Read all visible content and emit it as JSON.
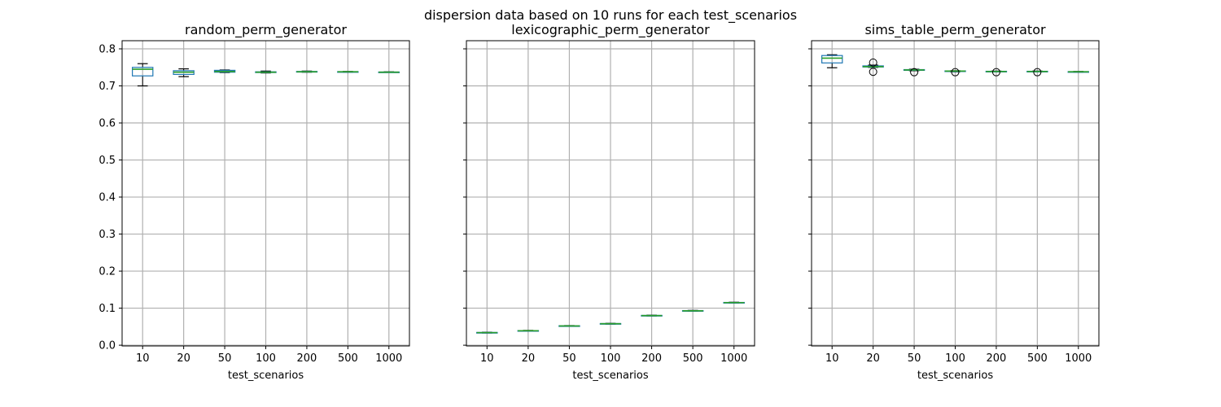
{
  "figure": {
    "suptitle": "dispersion data based on 10 runs for each test_scenarios"
  },
  "chart_data": [
    {
      "type": "box",
      "title": "random_perm_generator",
      "xlabel": "test_scenarios",
      "ylabel": "",
      "categories": [
        "10",
        "20",
        "50",
        "100",
        "200",
        "500",
        "1000"
      ],
      "ylim": [
        -0.002,
        0.822
      ],
      "yticks": [
        "0.0",
        "0.1",
        "0.2",
        "0.3",
        "0.4",
        "0.5",
        "0.6",
        "0.7",
        "0.8"
      ],
      "grid": true,
      "boxes": [
        {
          "whislo": 0.7,
          "q1": 0.727,
          "med": 0.745,
          "q3": 0.75,
          "whishi": 0.76,
          "fliers": []
        },
        {
          "whislo": 0.725,
          "q1": 0.731,
          "med": 0.737,
          "q3": 0.741,
          "whishi": 0.746,
          "fliers": []
        },
        {
          "whislo": 0.736,
          "q1": 0.737,
          "med": 0.739,
          "q3": 0.742,
          "whishi": 0.743,
          "fliers": []
        },
        {
          "whislo": 0.735,
          "q1": 0.736,
          "med": 0.737,
          "q3": 0.738,
          "whishi": 0.74,
          "fliers": []
        },
        {
          "whislo": 0.737,
          "q1": 0.7375,
          "med": 0.738,
          "q3": 0.739,
          "whishi": 0.74,
          "fliers": []
        },
        {
          "whislo": 0.737,
          "q1": 0.7375,
          "med": 0.738,
          "q3": 0.7385,
          "whishi": 0.739,
          "fliers": []
        },
        {
          "whislo": 0.7365,
          "q1": 0.737,
          "med": 0.737,
          "q3": 0.7375,
          "whishi": 0.738,
          "fliers": []
        }
      ]
    },
    {
      "type": "box",
      "title": "lexicographic_perm_generator",
      "xlabel": "test_scenarios",
      "ylabel": "",
      "categories": [
        "10",
        "20",
        "50",
        "100",
        "200",
        "500",
        "1000"
      ],
      "ylim": [
        -0.002,
        0.822
      ],
      "yticks": [],
      "grid": true,
      "boxes": [
        {
          "whislo": 0.033,
          "q1": 0.0335,
          "med": 0.034,
          "q3": 0.0345,
          "whishi": 0.035,
          "fliers": []
        },
        {
          "whislo": 0.038,
          "q1": 0.0385,
          "med": 0.039,
          "q3": 0.0395,
          "whishi": 0.04,
          "fliers": []
        },
        {
          "whislo": 0.051,
          "q1": 0.0515,
          "med": 0.052,
          "q3": 0.0525,
          "whishi": 0.053,
          "fliers": []
        },
        {
          "whislo": 0.057,
          "q1": 0.0575,
          "med": 0.058,
          "q3": 0.0585,
          "whishi": 0.059,
          "fliers": []
        },
        {
          "whislo": 0.079,
          "q1": 0.0795,
          "med": 0.08,
          "q3": 0.0805,
          "whishi": 0.081,
          "fliers": []
        },
        {
          "whislo": 0.092,
          "q1": 0.0925,
          "med": 0.093,
          "q3": 0.0935,
          "whishi": 0.094,
          "fliers": []
        },
        {
          "whislo": 0.114,
          "q1": 0.1145,
          "med": 0.115,
          "q3": 0.1155,
          "whishi": 0.116,
          "fliers": []
        }
      ]
    },
    {
      "type": "box",
      "title": "sims_table_perm_generator",
      "xlabel": "test_scenarios",
      "ylabel": "",
      "categories": [
        "10",
        "20",
        "50",
        "100",
        "200",
        "500",
        "1000"
      ],
      "ylim": [
        -0.002,
        0.822
      ],
      "yticks": [],
      "grid": true,
      "boxes": [
        {
          "whislo": 0.749,
          "q1": 0.762,
          "med": 0.775,
          "q3": 0.782,
          "whishi": 0.784,
          "fliers": []
        },
        {
          "whislo": 0.75,
          "q1": 0.751,
          "med": 0.752,
          "q3": 0.754,
          "whishi": 0.756,
          "fliers": [
            0.763,
            0.738
          ]
        },
        {
          "whislo": 0.741,
          "q1": 0.742,
          "med": 0.743,
          "q3": 0.744,
          "whishi": 0.745,
          "fliers": [
            0.737
          ]
        },
        {
          "whislo": 0.738,
          "q1": 0.739,
          "med": 0.74,
          "q3": 0.7405,
          "whishi": 0.741,
          "fliers": [
            0.737
          ]
        },
        {
          "whislo": 0.738,
          "q1": 0.7385,
          "med": 0.739,
          "q3": 0.7395,
          "whishi": 0.74,
          "fliers": [
            0.737
          ]
        },
        {
          "whislo": 0.738,
          "q1": 0.7385,
          "med": 0.739,
          "q3": 0.7395,
          "whishi": 0.74,
          "fliers": [
            0.737
          ]
        },
        {
          "whislo": 0.737,
          "q1": 0.7375,
          "med": 0.738,
          "q3": 0.7385,
          "whishi": 0.739,
          "fliers": []
        }
      ]
    }
  ],
  "colors": {
    "box": "#1f77b4",
    "median": "#2ca02c",
    "whisker": "#000000",
    "flier": "#000000",
    "grid": "#b0b0b0"
  }
}
